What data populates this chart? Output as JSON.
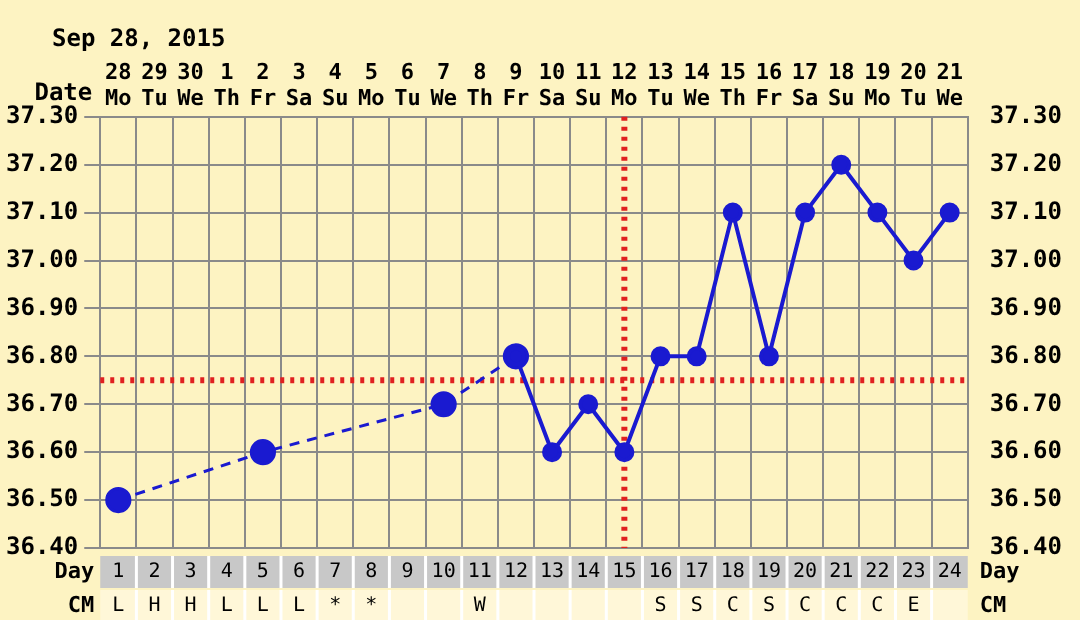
{
  "chart_data": {
    "type": "line",
    "title": "Sep 28, 2015",
    "xlabel": "Date",
    "categories": [
      "28 Mo",
      "29 Tu",
      "30 We",
      "1 Th",
      "2 Fr",
      "3 Sa",
      "4 Su",
      "5 Mo",
      "6 Tu",
      "7 We",
      "8 Th",
      "9 Fr",
      "10 Sa",
      "11 Su",
      "12 Mo",
      "13 Tu",
      "14 We",
      "15 Th",
      "16 Fr",
      "17 Sa",
      "18 Su",
      "19 Mo",
      "20 Tu",
      "21 We"
    ],
    "series": [
      {
        "color": "#1a1ad0",
        "line_style": "dashed",
        "values": [
          36.5,
          null,
          null,
          null,
          36.6,
          null,
          null,
          null,
          null,
          36.7,
          null,
          36.8,
          null,
          null,
          null,
          null,
          null,
          null,
          null,
          null,
          null,
          null,
          null,
          null
        ]
      },
      {
        "color": "#1a1ad0",
        "line_style": "solid",
        "values": [
          null,
          null,
          null,
          null,
          null,
          null,
          null,
          null,
          null,
          null,
          null,
          36.8,
          36.6,
          36.7,
          36.6,
          36.8,
          36.8,
          37.1,
          36.8,
          37.1,
          37.2,
          37.1,
          37.0,
          37.1
        ]
      }
    ],
    "ylim": [
      36.4,
      37.3
    ],
    "yticks": [
      {
        "value": 36.4,
        "label": "36.40"
      },
      {
        "value": 36.5,
        "label": "36.50"
      },
      {
        "value": 36.6,
        "label": "36.60"
      },
      {
        "value": 36.7,
        "label": "36.70"
      },
      {
        "value": 36.8,
        "label": "36.80"
      },
      {
        "value": 36.9,
        "label": "36.90"
      },
      {
        "value": 37.0,
        "label": "37.00"
      },
      {
        "value": 37.1,
        "label": "37.10"
      },
      {
        "value": 37.2,
        "label": "37.20"
      },
      {
        "value": 37.3,
        "label": "37.30"
      }
    ],
    "y2lim": [
      36.4,
      37.3
    ],
    "y2ticks": [
      {
        "value": 36.4,
        "label": "36.40"
      },
      {
        "value": 36.5,
        "label": "36.50"
      },
      {
        "value": 36.6,
        "label": "36.60"
      },
      {
        "value": 36.7,
        "label": "36.70"
      },
      {
        "value": 36.8,
        "label": "36.80"
      },
      {
        "value": 36.9,
        "label": "36.90"
      },
      {
        "value": 37.0,
        "label": "37.00"
      },
      {
        "value": 37.1,
        "label": "37.10"
      },
      {
        "value": 37.2,
        "label": "37.20"
      },
      {
        "value": 37.3,
        "label": "37.30"
      }
    ],
    "ref_lines": [
      {
        "axis": "y",
        "value": 36.75,
        "color": "#e02020",
        "line_style": "dotted"
      },
      {
        "axis": "x",
        "value": "12 Mo",
        "color": "#e02020",
        "line_style": "dotted"
      }
    ],
    "grid": true,
    "marker": "circle",
    "legend": false,
    "annotations": [
      "Day",
      "1 2 3 4 5 6 7 8 9 10 11 12 13 14 15 16 17 18 19 20 21 22 23 24",
      "Day",
      "CM",
      "L",
      "H",
      "H",
      "L",
      "L",
      "L",
      "*",
      "*",
      null,
      null,
      "W",
      null,
      null,
      null,
      null,
      "S",
      "S",
      "C",
      "S",
      "C",
      "C",
      "C",
      "E",
      null,
      "CM"
    ]
  }
}
